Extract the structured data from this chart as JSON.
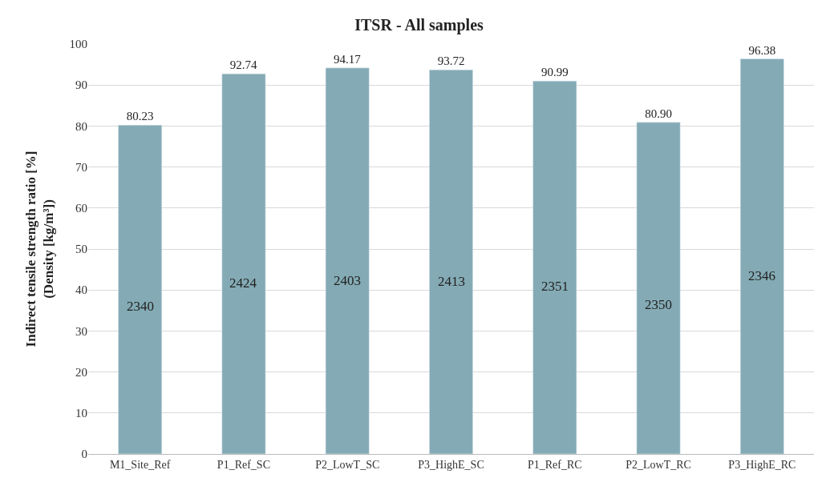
{
  "chart_data": {
    "type": "bar",
    "title": "ITSR - All samples",
    "ylabel": "Indirect tensile strength ratio [%]\n(Density [kg/m³])",
    "categories": [
      "M1_Site_Ref",
      "P1_Ref_SC",
      "P2_LowT_SC",
      "P3_HighE_SC",
      "P1_Ref_RC",
      "P2_LowT_RC",
      "P3_HighE_RC"
    ],
    "values": [
      80.23,
      92.74,
      94.17,
      93.72,
      90.99,
      80.9,
      96.38
    ],
    "value_labels": [
      "80.23",
      "92.74",
      "94.17",
      "93.72",
      "90.99",
      "80.90",
      "96.38"
    ],
    "color": "#84abb5",
    "ylim": [
      0,
      100
    ],
    "yticks": [
      0,
      10,
      20,
      30,
      40,
      50,
      60,
      70,
      80,
      90,
      100
    ],
    "grid": "y",
    "legend": false,
    "annotations": [
      "2340",
      "2424",
      "2403",
      "2413",
      "2351",
      "2350",
      "2346"
    ]
  }
}
